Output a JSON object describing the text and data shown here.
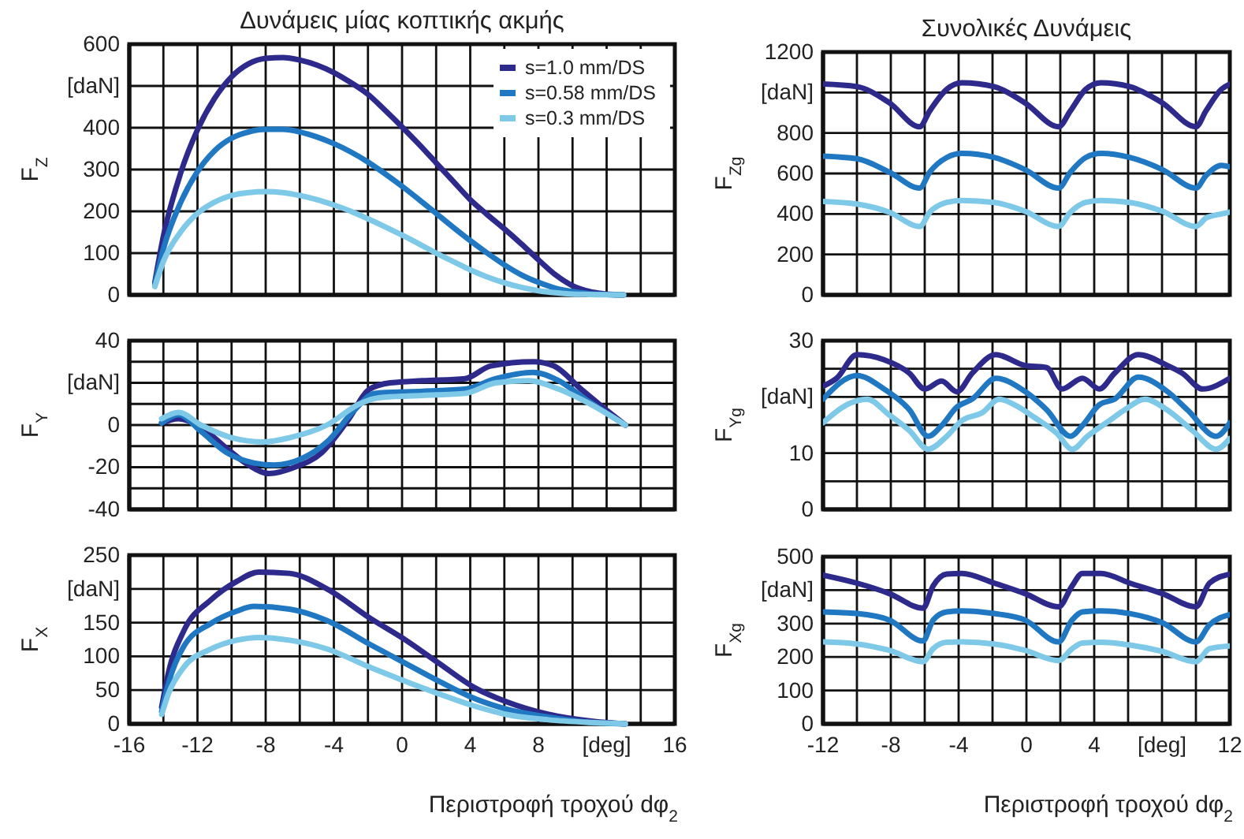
{
  "chart_data": [
    {
      "type": "line",
      "title": "Δυνάμεις μίας κοπτικής ακμής",
      "ylabel": "F$_{Z}$",
      "xlim": [
        -16,
        16
      ],
      "xticks": [
        -16,
        -14,
        -12,
        -10,
        -8,
        -6,
        -4,
        -2,
        0,
        2,
        4,
        6,
        8,
        10,
        12,
        14,
        16
      ],
      "ylim": [
        0,
        600
      ],
      "yticks": [
        0,
        100,
        200,
        300,
        400,
        {
          "value": 500,
          "label": "[daN]"
        },
        600
      ],
      "grid": true,
      "tick_labels": "y",
      "legend": "top right",
      "series": [
        {
          "name": "s=1.0 mm/DS",
          "color": "#2e2a8c",
          "x": [
            -14.5,
            -14,
            -13,
            -12,
            -11,
            -10,
            -9,
            -8,
            -7,
            -6,
            -5,
            -4,
            -3,
            -2,
            -1,
            0,
            1,
            2,
            3,
            4,
            5,
            6,
            7,
            8,
            9,
            10,
            11,
            12,
            13
          ],
          "values": [
            30,
            140,
            290,
            395,
            470,
            522,
            553,
            566,
            568,
            562,
            550,
            532,
            508,
            480,
            442,
            402,
            360,
            316,
            272,
            228,
            192,
            158,
            122,
            84,
            48,
            22,
            8,
            2,
            0
          ]
        },
        {
          "name": "s=0.58 mm/DS",
          "color": "#1f78c1",
          "x": [
            -14.5,
            -14,
            -13,
            -12,
            -11,
            -10,
            -9,
            -8,
            -7,
            -6,
            -5,
            -4,
            -3,
            -2,
            -1,
            0,
            1,
            2,
            3,
            4,
            5,
            6,
            7,
            8,
            9,
            10,
            11,
            12,
            13
          ],
          "values": [
            25,
            110,
            220,
            295,
            345,
            375,
            390,
            396,
            396,
            390,
            378,
            362,
            342,
            318,
            290,
            260,
            228,
            195,
            162,
            130,
            100,
            72,
            48,
            30,
            16,
            8,
            3,
            1,
            0
          ]
        },
        {
          "name": "s=0.3 mm/DS",
          "color": "#7ec8e8",
          "x": [
            -14.5,
            -14,
            -13,
            -12,
            -11,
            -10,
            -9,
            -8,
            -7,
            -6,
            -5,
            -4,
            -3,
            -2,
            -1,
            0,
            1,
            2,
            3,
            4,
            5,
            6,
            7,
            8,
            9,
            10,
            11,
            13
          ],
          "values": [
            20,
            80,
            150,
            195,
            222,
            238,
            245,
            247,
            245,
            238,
            228,
            215,
            200,
            182,
            163,
            143,
            122,
            100,
            80,
            60,
            43,
            29,
            18,
            10,
            5,
            2,
            1,
            0
          ]
        }
      ]
    },
    {
      "type": "line",
      "title": "Συνολικές Δυνάμεις",
      "ylabel": "F$_{Zg}$",
      "xlim": [
        -12,
        12
      ],
      "xticks": [
        -12,
        -10,
        -8,
        -6,
        -4,
        -2,
        0,
        2,
        4,
        6,
        8,
        10,
        12
      ],
      "ylim": [
        0,
        1200
      ],
      "yticks": [
        0,
        200,
        400,
        600,
        800,
        {
          "value": 1000,
          "label": "[daN]"
        },
        1200
      ],
      "grid": true,
      "tick_labels": "y",
      "series": [
        {
          "color": "#2e2a8c",
          "x": [
            -12,
            -10,
            -8.1,
            -6.3,
            -5.7,
            -4.7,
            -3.8,
            -1.9,
            -0.1,
            1.9,
            2.6,
            3.5,
            4.4,
            6.1,
            8,
            10,
            10.6,
            11.5,
            12
          ],
          "values": [
            1042,
            1029,
            950,
            831,
            910,
            1016,
            1048,
            1029,
            950,
            831,
            910,
            1016,
            1048,
            1029,
            950,
            831,
            910,
            1016,
            1042
          ]
        },
        {
          "color": "#1f78c1",
          "x": [
            -12,
            -10,
            -8.1,
            -6.3,
            -5.7,
            -4.7,
            -3.8,
            -1.9,
            -0.1,
            1.9,
            2.6,
            3.5,
            4.4,
            6.1,
            8,
            10,
            10.6,
            11.5,
            12
          ],
          "values": [
            686,
            673,
            607,
            528,
            607,
            679,
            699,
            679,
            620,
            528,
            607,
            679,
            699,
            679,
            620,
            528,
            590,
            640,
            633
          ]
        },
        {
          "color": "#7ec8e8",
          "x": [
            -12,
            -10,
            -8.1,
            -6.3,
            -5.7,
            -4.7,
            -3.8,
            -1.9,
            -0.1,
            1.9,
            2.6,
            3.5,
            4.4,
            6.1,
            8,
            10,
            10.6,
            11.5,
            12
          ],
          "values": [
            462,
            449,
            409,
            338,
            409,
            457,
            467,
            457,
            414,
            338,
            409,
            457,
            467,
            457,
            414,
            338,
            380,
            400,
            409
          ]
        }
      ]
    },
    {
      "type": "line",
      "ylabel": "F$_{Y}$",
      "xlim": [
        -16,
        16
      ],
      "xticks": [
        -16,
        -14,
        -12,
        -10,
        -8,
        -6,
        -4,
        -2,
        0,
        2,
        4,
        6,
        8,
        10,
        12,
        14,
        16
      ],
      "ylim": [
        -40,
        40
      ],
      "yticks": [
        -40,
        {
          "value": -30,
          "label": null
        },
        -20,
        {
          "value": -10,
          "label": null
        },
        0,
        {
          "value": 10,
          "label": null
        },
        {
          "value": 20,
          "label": "[daN]"
        },
        {
          "value": 30,
          "label": null
        },
        40
      ],
      "grid": true,
      "tick_labels": "y",
      "series": [
        {
          "color": "#2e2a8c",
          "x": [
            -14.1,
            -13.1,
            -11.8,
            -10.3,
            -9,
            -7.8,
            -6.3,
            -4.7,
            -3.2,
            -1.9,
            -0.7,
            1.2,
            3.7,
            5.2,
            7.7,
            8.9,
            10.5,
            12,
            13.1
          ],
          "values": [
            1,
            3,
            -1,
            -11,
            -19,
            -23,
            -20,
            -13,
            2,
            17,
            20,
            21,
            22,
            28,
            30,
            28,
            17,
            7,
            0
          ]
        },
        {
          "color": "#1f78c1",
          "x": [
            -14.1,
            -13.1,
            -11.8,
            -10.3,
            -8.7,
            -7.5,
            -5.9,
            -4.4,
            -2.8,
            -1.6,
            1.2,
            3.7,
            5.5,
            7.7,
            9.2,
            10.8,
            13.1
          ],
          "values": [
            1,
            5,
            -3,
            -13,
            -18,
            -19,
            -16,
            -8,
            7,
            15,
            16,
            17,
            22,
            25,
            21,
            12,
            0
          ]
        },
        {
          "color": "#7ec8e8",
          "x": [
            -14.1,
            -13.1,
            -11.8,
            -10,
            -8.1,
            -6.6,
            -4.4,
            -2.5,
            -1.3,
            1.2,
            3.7,
            5.5,
            7.4,
            9.2,
            10.8,
            13.1
          ],
          "values": [
            3,
            6,
            0,
            -6,
            -8,
            -6,
            0,
            10,
            13,
            14,
            15,
            20,
            21,
            17,
            11,
            0
          ]
        }
      ]
    },
    {
      "type": "line",
      "ylabel": "F$_{Yg}$",
      "xlim": [
        -12,
        12
      ],
      "xticks": [
        -12,
        -10,
        -8,
        -6,
        -4,
        -2,
        0,
        2,
        4,
        6,
        8,
        10,
        12
      ],
      "ylim": [
        0,
        30
      ],
      "yticks": [
        0,
        {
          "value": 5,
          "label": null
        },
        10,
        {
          "value": 15,
          "label": null
        },
        {
          "value": 20,
          "label": "[daN]"
        },
        {
          "value": 25,
          "label": null
        },
        30
      ],
      "grid": true,
      "tick_labels": "y",
      "series": [
        {
          "color": "#2e2a8c",
          "x": [
            -12,
            -11.2,
            -10,
            -8.4,
            -6.9,
            -6,
            -5,
            -4.1,
            -3.2,
            -1.8,
            -0.1,
            1.2,
            2.1,
            3.3,
            4.3,
            5.2,
            6.6,
            8.3,
            9.2,
            10.4,
            12
          ],
          "values": [
            21.9,
            23.3,
            27.5,
            26.6,
            24.2,
            21.4,
            22.8,
            20.9,
            24.2,
            27.5,
            25.6,
            25.2,
            21.4,
            23.3,
            21.4,
            24.2,
            27.5,
            25.6,
            24.2,
            21.4,
            23.3
          ]
        },
        {
          "color": "#1f78c1",
          "x": [
            -12,
            -10,
            -8.4,
            -6.9,
            -5.8,
            -5,
            -4.1,
            -3.2,
            -1.8,
            -0.1,
            1.2,
            2.6,
            3.3,
            4.3,
            5.2,
            6.6,
            8.3,
            9.5,
            11.2,
            12
          ],
          "values": [
            19.6,
            23.8,
            21.4,
            17.7,
            13,
            14.9,
            18.2,
            19.6,
            23.3,
            21,
            17.7,
            13,
            14.9,
            18.6,
            19.6,
            23.5,
            21,
            17.7,
            13,
            15.4
          ]
        },
        {
          "color": "#7ec8e8",
          "x": [
            -12,
            -10.6,
            -9.4,
            -8.1,
            -6.9,
            -5.8,
            -4.7,
            -3.8,
            -2.6,
            -1.6,
            -0.7,
            0.5,
            1.8,
            2.7,
            3.6,
            4.9,
            5.8,
            7,
            8.3,
            9.8,
            11.2,
            12
          ],
          "values": [
            15.4,
            18.6,
            19.6,
            16.8,
            14,
            10.7,
            13,
            15.8,
            17.2,
            19.6,
            18.6,
            16.3,
            13.5,
            10.7,
            13,
            15.8,
            17.7,
            19.6,
            17.7,
            14,
            10.7,
            12.6
          ]
        }
      ]
    },
    {
      "type": "line",
      "ylabel": "F$_{X}$",
      "xlabel": "Περιστροφή τροχού dφ$_{2}$",
      "xlim": [
        -16,
        16
      ],
      "xticks": [
        -16,
        {
          "value": -14,
          "label": null
        },
        -12,
        {
          "value": -10,
          "label": null
        },
        -8,
        {
          "value": -6,
          "label": null
        },
        -4,
        {
          "value": -2,
          "label": null
        },
        0,
        {
          "value": 2,
          "label": null
        },
        4,
        {
          "value": 6,
          "label": null
        },
        8,
        {
          "value": 10,
          "label": null
        },
        {
          "value": 12,
          "label": "[deg]"
        },
        {
          "value": 14,
          "label": null
        },
        16
      ],
      "ylim": [
        0,
        250
      ],
      "yticks": [
        0,
        50,
        100,
        150,
        {
          "value": 200,
          "label": "[daN]"
        },
        250
      ],
      "grid": true,
      "series": [
        {
          "color": "#2e2a8c",
          "x": [
            -14.1,
            -13.7,
            -12.8,
            -11.2,
            -9.7,
            -8.4,
            -6.6,
            -4.4,
            -1.9,
            0.1,
            2.1,
            4.3,
            6.1,
            8.6,
            11.1,
            13.1
          ],
          "values": [
            25,
            76,
            138,
            184,
            211,
            225,
            223,
            200,
            157,
            126,
            91,
            53,
            33,
            14,
            4,
            0
          ]
        },
        {
          "color": "#1f78c1",
          "x": [
            -14.1,
            -13.7,
            -12.8,
            -11.2,
            -9.7,
            -8.7,
            -6.6,
            -4.4,
            -1.9,
            0.1,
            2.1,
            4.3,
            6.1,
            8.6,
            11.1,
            13.1
          ],
          "values": [
            18,
            60,
            115,
            149,
            167,
            174,
            170,
            153,
            118,
            91,
            64,
            37,
            22,
            10,
            2,
            0
          ]
        },
        {
          "color": "#7ec8e8",
          "x": [
            -14.1,
            -13.7,
            -12.8,
            -11.2,
            -9.7,
            -8.4,
            -6.6,
            -4.4,
            -1.9,
            0.1,
            2.1,
            4.3,
            6.1,
            8.6,
            11.1,
            13.1
          ],
          "values": [
            14,
            45,
            84,
            111,
            124,
            128,
            124,
            111,
            84,
            64,
            45,
            26,
            14,
            6,
            2,
            0
          ]
        }
      ]
    },
    {
      "type": "line",
      "ylabel": "F$_{Xg}$",
      "xlabel": "Περιστροφή τροχού dφ$_{2}$",
      "xlim": [
        -12,
        12
      ],
      "xticks": [
        -12,
        {
          "value": -10,
          "label": null
        },
        -8,
        {
          "value": -6,
          "label": null
        },
        -4,
        {
          "value": -2,
          "label": null
        },
        0,
        {
          "value": 2,
          "label": null
        },
        4,
        {
          "value": 6,
          "label": null
        },
        {
          "value": 8,
          "label": "[deg]"
        },
        {
          "value": 10,
          "label": null
        },
        12
      ],
      "ylim": [
        0,
        500
      ],
      "yticks": [
        0,
        100,
        200,
        300,
        {
          "value": 400,
          "label": "[daN]"
        },
        500
      ],
      "grid": true,
      "series": [
        {
          "color": "#2e2a8c",
          "x": [
            -12,
            -10,
            -8.1,
            -6.1,
            -5.5,
            -4.7,
            -3.8,
            -1.9,
            -0.1,
            1.9,
            2.7,
            3.3,
            4.4,
            6.1,
            8,
            10,
            10.8,
            12
          ],
          "values": [
            445,
            421,
            390,
            346,
            413,
            448,
            450,
            421,
            390,
            350,
            413,
            450,
            450,
            421,
            390,
            350,
            421,
            448
          ]
        },
        {
          "color": "#1f78c1",
          "x": [
            -12,
            -10,
            -8.1,
            -6.1,
            -5.5,
            -4.7,
            -3.8,
            -1.9,
            -0.1,
            1.9,
            2.7,
            3.3,
            4.4,
            6.1,
            8,
            10,
            10.8,
            12
          ],
          "values": [
            335,
            330,
            311,
            248,
            311,
            335,
            338,
            330,
            311,
            245,
            311,
            335,
            338,
            330,
            303,
            245,
            296,
            327
          ]
        },
        {
          "color": "#7ec8e8",
          "x": [
            -12,
            -10,
            -8.1,
            -6.1,
            -5.5,
            -4.7,
            -3.8,
            -1.9,
            -0.1,
            1.9,
            2.7,
            3.3,
            4.4,
            6.1,
            8,
            10,
            10.8,
            12
          ],
          "values": [
            245,
            239,
            220,
            186,
            225,
            244,
            245,
            239,
            220,
            189,
            225,
            242,
            244,
            236,
            217,
            186,
            225,
            233
          ]
        }
      ]
    }
  ]
}
